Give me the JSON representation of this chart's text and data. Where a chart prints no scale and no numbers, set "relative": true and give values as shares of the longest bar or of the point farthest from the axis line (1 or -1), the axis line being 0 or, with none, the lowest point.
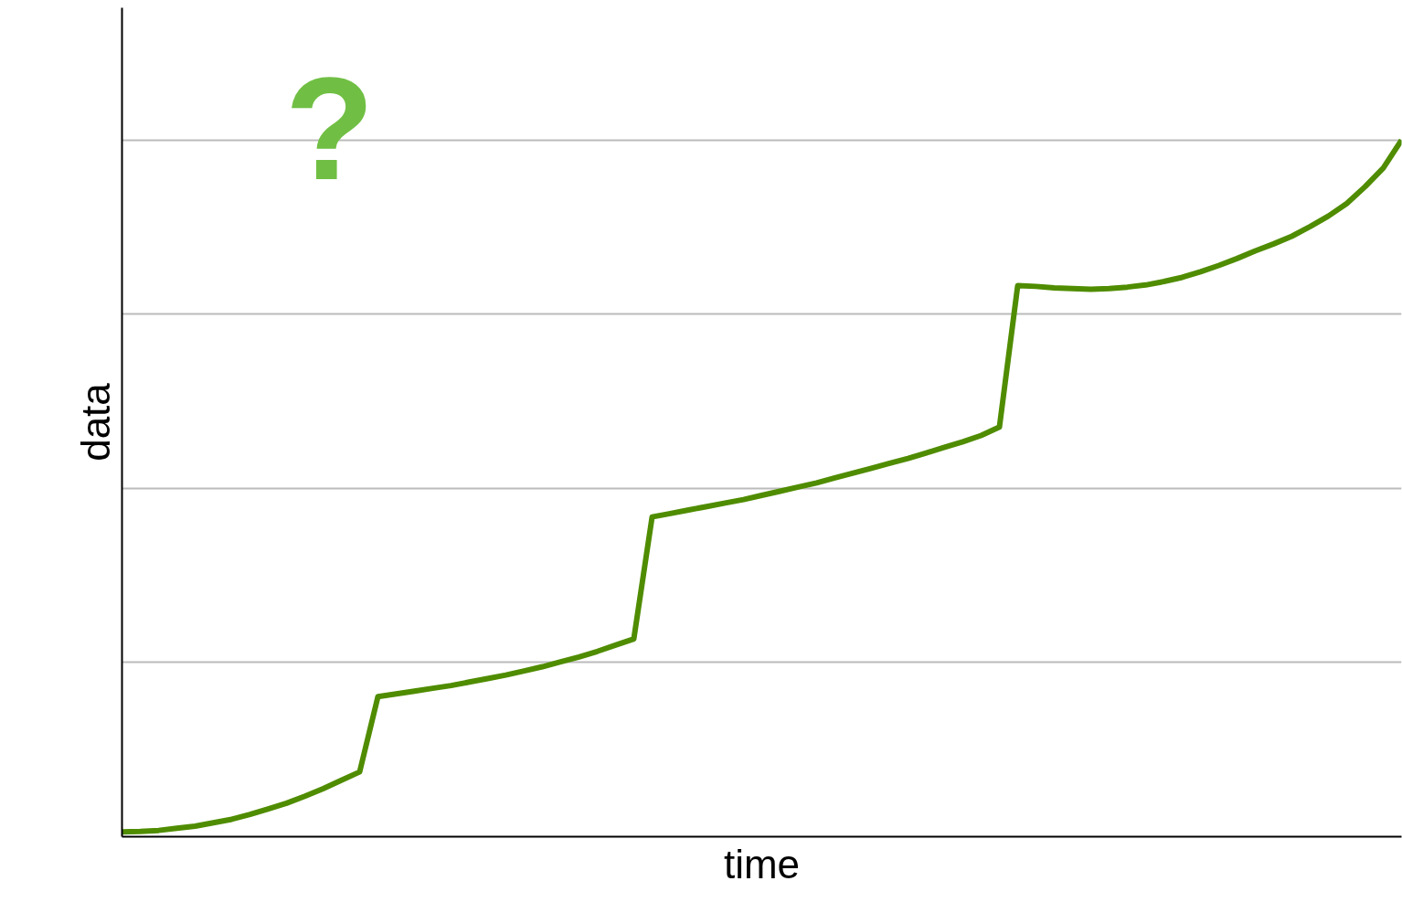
{
  "chart_data": {
    "type": "line",
    "relative": true,
    "xlabel": "time",
    "ylabel": "data",
    "annotations": [
      "?"
    ],
    "categories": [
      null,
      null,
      null,
      null,
      null,
      null,
      null,
      null,
      null,
      null,
      null,
      null,
      null,
      null,
      null,
      null,
      null,
      null,
      null,
      null,
      null,
      null,
      null,
      null,
      null,
      null,
      null,
      null,
      null,
      null,
      null,
      null,
      null,
      null,
      null,
      null,
      null,
      null,
      null,
      null,
      null,
      null,
      null,
      null,
      null,
      null,
      null,
      null,
      null,
      null,
      null,
      null,
      null,
      null,
      null,
      null,
      null,
      null,
      null,
      null,
      null,
      null,
      null,
      null,
      null,
      null,
      null,
      null,
      null,
      null,
      null
    ],
    "series": [
      {
        "color": "#4f8c00",
        "values": [
          0.007,
          0.0075,
          0.009,
          0.012,
          0.015,
          0.02,
          0.025,
          0.032,
          0.04,
          0.048,
          0.058,
          0.069,
          0.081,
          0.093,
          0.201,
          0.205,
          0.209,
          0.213,
          0.217,
          0.222,
          0.227,
          0.232,
          0.238,
          0.244,
          0.251,
          0.258,
          0.266,
          0.275,
          0.284,
          0.459,
          0.464,
          0.469,
          0.474,
          0.479,
          0.484,
          0.49,
          0.496,
          0.502,
          0.508,
          0.515,
          0.522,
          0.529,
          0.536,
          0.543,
          0.551,
          0.559,
          0.567,
          0.576,
          0.588,
          0.791,
          0.79,
          0.788,
          0.787,
          0.786,
          0.787,
          0.789,
          0.792,
          0.797,
          0.803,
          0.811,
          0.82,
          0.83,
          0.841,
          0.851,
          0.862,
          0.876,
          0.891,
          0.909,
          0.933,
          0.96,
          1.0
        ]
      }
    ],
    "grid": "y",
    "line_style": "solid",
    "marker": "none"
  }
}
